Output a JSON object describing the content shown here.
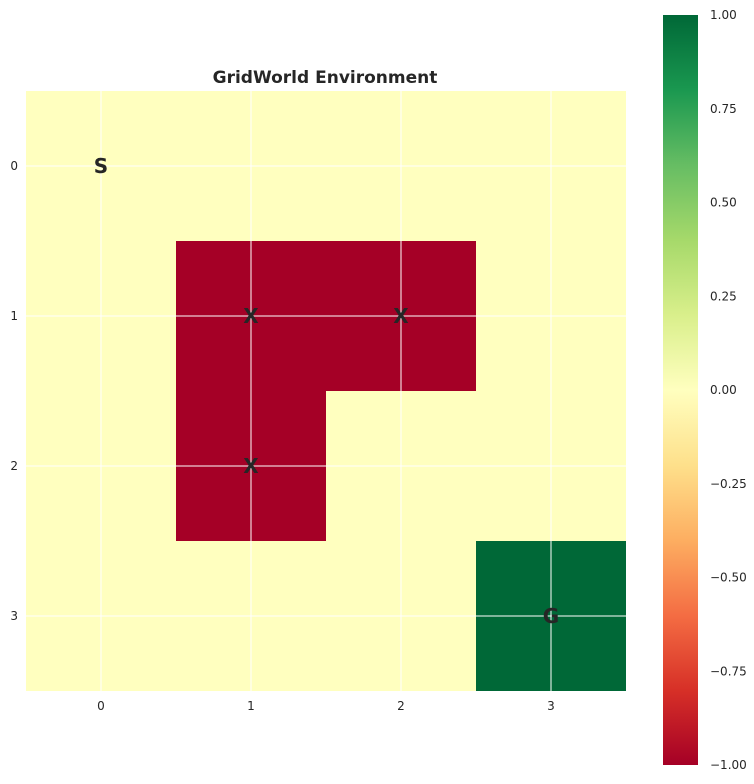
{
  "chart_data": {
    "type": "heatmap",
    "title": "GridWorld Environment",
    "xlabel": "",
    "ylabel": "",
    "x_ticks": [
      "0",
      "1",
      "2",
      "3"
    ],
    "y_ticks": [
      "0",
      "1",
      "2",
      "3"
    ],
    "values": [
      [
        0,
        0,
        0,
        0
      ],
      [
        0,
        -1,
        -1,
        0
      ],
      [
        0,
        -1,
        0,
        0
      ],
      [
        0,
        0,
        0,
        1
      ]
    ],
    "cell_labels": [
      {
        "row": 0,
        "col": 0,
        "text": "S"
      },
      {
        "row": 1,
        "col": 1,
        "text": "X"
      },
      {
        "row": 1,
        "col": 2,
        "text": "X"
      },
      {
        "row": 2,
        "col": 1,
        "text": "X"
      },
      {
        "row": 3,
        "col": 3,
        "text": "G"
      }
    ],
    "colormap": "RdYlGn",
    "vmin": -1.0,
    "vmax": 1.0,
    "colorbar_ticks": [
      "1.00",
      "0.75",
      "0.50",
      "0.25",
      "0.00",
      "−0.25",
      "−0.50",
      "−0.75",
      "−1.00"
    ],
    "colorbar_tick_values": [
      1.0,
      0.75,
      0.5,
      0.25,
      0.0,
      -0.25,
      -0.5,
      -0.75,
      -1.0
    ],
    "grid": true,
    "colors": {
      "negative": "#a50026",
      "neutral": "#ffffbf",
      "positive": "#006837",
      "gridline": "#ffffff",
      "text": "#262626"
    }
  }
}
